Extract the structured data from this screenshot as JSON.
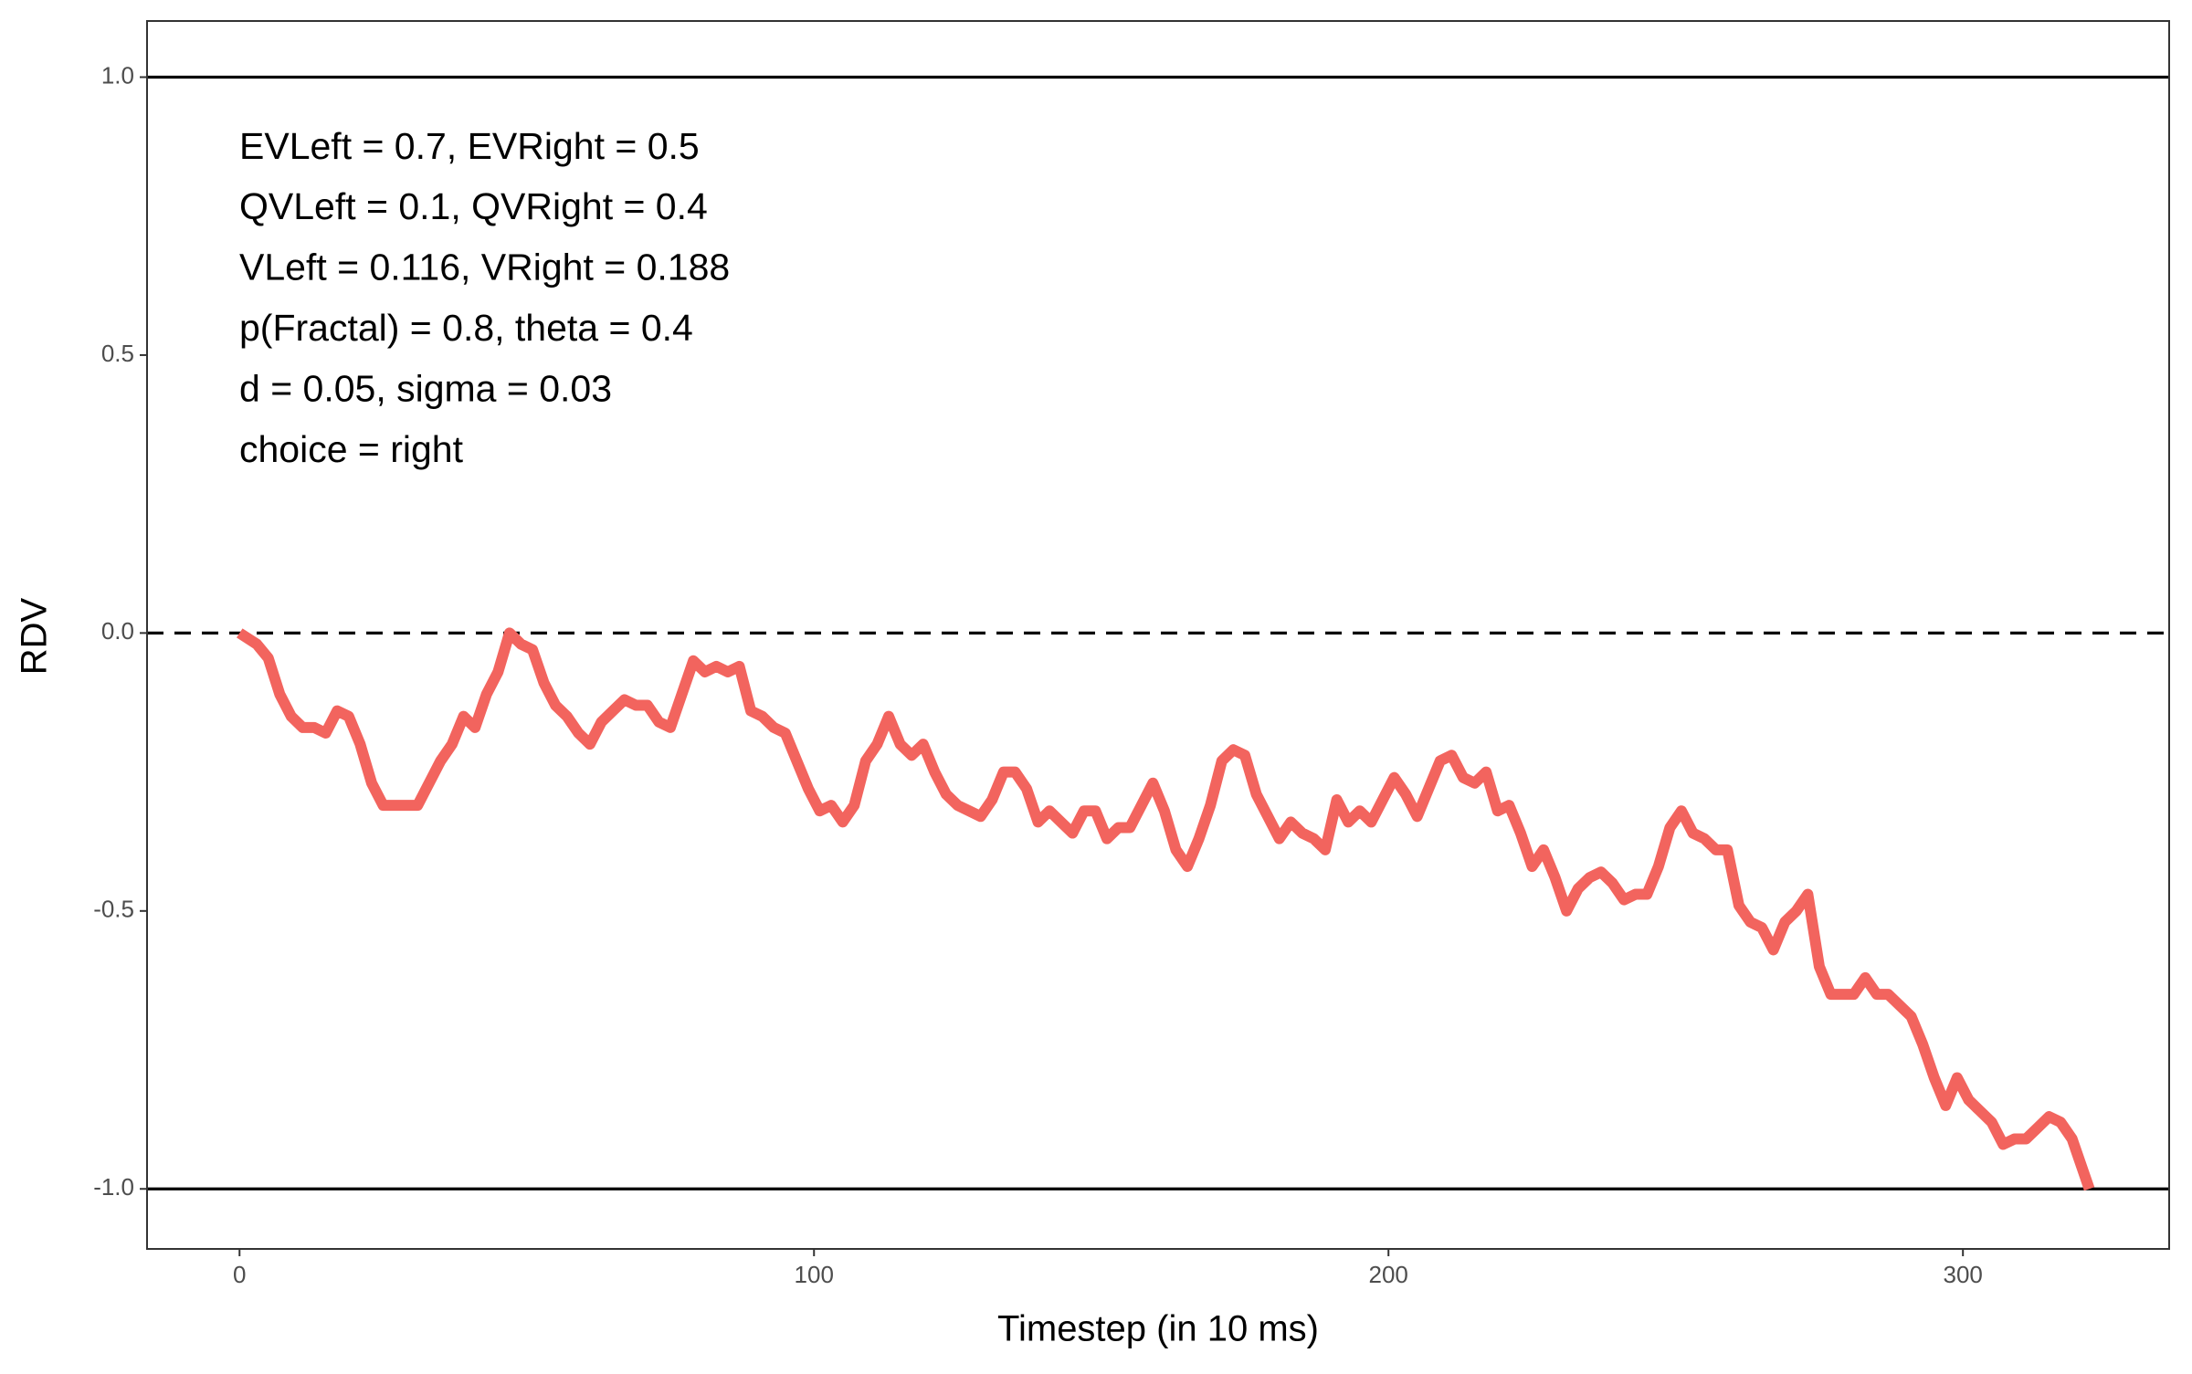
{
  "chart_data": {
    "type": "line",
    "xlabel": "Timestep (in 10 ms)",
    "ylabel": "RDV",
    "annotations": [
      "EVLeft = 0.7, EVRight = 0.5",
      "QVLeft = 0.1, QVRight = 0.4",
      "VLeft = 0.116, VRight = 0.188",
      "p(Fractal) = 0.8, theta = 0.4",
      "d = 0.05, sigma = 0.03",
      "choice = right"
    ],
    "color": "#f2645e",
    "xlim": [
      -16.1,
      335.9
    ],
    "ylim": [
      -1.108,
      1.101
    ],
    "xticks": [
      0,
      100,
      200,
      300
    ],
    "yticks": [
      {
        "value": -1,
        "label": "-1.0"
      },
      {
        "value": -0.5,
        "label": "-0.5"
      },
      {
        "value": 0,
        "label": "0.0"
      },
      {
        "value": 0.5,
        "label": "0.5"
      },
      {
        "value": 1,
        "label": "1.0"
      }
    ],
    "grid": false,
    "hlines": [
      {
        "value": 1,
        "style": "solid"
      },
      {
        "value": 0,
        "style": "dashed"
      },
      {
        "value": -1,
        "style": "solid"
      }
    ],
    "x": [
      0,
      3,
      5,
      7,
      9,
      11,
      13,
      15,
      17,
      19,
      21,
      23,
      25,
      27,
      29,
      31,
      33,
      35,
      37,
      39,
      41,
      43,
      45,
      47,
      49,
      51,
      53,
      55,
      57,
      59,
      61,
      63,
      65,
      67,
      69,
      71,
      73,
      75,
      77,
      79,
      81,
      83,
      85,
      87,
      89,
      91,
      93,
      95,
      97,
      99,
      101,
      103,
      105,
      107,
      109,
      111,
      113,
      115,
      117,
      119,
      121,
      123,
      125,
      127,
      129,
      131,
      133,
      135,
      137,
      139,
      141,
      143,
      145,
      147,
      149,
      151,
      153,
      155,
      157,
      159,
      161,
      163,
      165,
      167,
      169,
      171,
      173,
      175,
      177,
      179,
      181,
      183,
      185,
      187,
      189,
      191,
      193,
      195,
      197,
      199,
      201,
      203,
      205,
      207,
      209,
      211,
      213,
      215,
      217,
      219,
      221,
      223,
      225,
      227,
      229,
      231,
      233,
      235,
      237,
      239,
      241,
      243,
      245,
      247,
      249,
      251,
      253,
      255,
      257,
      259,
      261,
      263,
      265,
      267,
      269,
      271,
      273,
      275,
      277,
      279,
      281,
      283,
      285,
      287,
      289,
      291,
      293,
      295,
      297,
      299,
      301,
      303,
      305,
      307,
      309,
      311,
      313,
      315,
      317,
      319,
      321,
      322
    ],
    "values": [
      0,
      -0.02,
      -0.045,
      -0.11,
      -0.15,
      -0.17,
      -0.17,
      -0.18,
      -0.14,
      -0.15,
      -0.2,
      -0.27,
      -0.31,
      -0.31,
      -0.31,
      -0.31,
      -0.27,
      -0.23,
      -0.2,
      -0.15,
      -0.17,
      -0.11,
      -0.07,
      0,
      -0.02,
      -0.03,
      -0.09,
      -0.13,
      -0.15,
      -0.18,
      -0.2,
      -0.16,
      -0.14,
      -0.12,
      -0.13,
      -0.13,
      -0.16,
      -0.17,
      -0.11,
      -0.05,
      -0.07,
      -0.06,
      -0.07,
      -0.06,
      -0.14,
      -0.15,
      -0.17,
      -0.18,
      -0.23,
      -0.28,
      -0.32,
      -0.31,
      -0.34,
      -0.31,
      -0.23,
      -0.2,
      -0.15,
      -0.2,
      -0.22,
      -0.2,
      -0.25,
      -0.29,
      -0.31,
      -0.32,
      -0.33,
      -0.3,
      -0.25,
      -0.25,
      -0.28,
      -0.34,
      -0.32,
      -0.34,
      -0.36,
      -0.32,
      -0.32,
      -0.37,
      -0.35,
      -0.35,
      -0.31,
      -0.27,
      -0.32,
      -0.39,
      -0.42,
      -0.37,
      -0.31,
      -0.23,
      -0.21,
      -0.22,
      -0.29,
      -0.33,
      -0.37,
      -0.34,
      -0.36,
      -0.37,
      -0.39,
      -0.3,
      -0.34,
      -0.32,
      -0.34,
      -0.3,
      -0.26,
      -0.29,
      -0.33,
      -0.28,
      -0.23,
      -0.22,
      -0.26,
      -0.27,
      -0.25,
      -0.32,
      -0.31,
      -0.36,
      -0.42,
      -0.39,
      -0.44,
      -0.5,
      -0.46,
      -0.44,
      -0.43,
      -0.45,
      -0.48,
      -0.47,
      -0.47,
      -0.42,
      -0.35,
      -0.32,
      -0.36,
      -0.37,
      -0.39,
      -0.39,
      -0.49,
      -0.52,
      -0.53,
      -0.57,
      -0.52,
      -0.5,
      -0.47,
      -0.6,
      -0.65,
      -0.65,
      -0.65,
      -0.62,
      -0.65,
      -0.65,
      -0.67,
      -0.69,
      -0.74,
      -0.8,
      -0.85,
      -0.8,
      -0.84,
      -0.86,
      -0.88,
      -0.92,
      -0.91,
      -0.91,
      -0.89,
      -0.87,
      -0.88,
      -0.91,
      -0.97,
      -1.0
    ]
  }
}
